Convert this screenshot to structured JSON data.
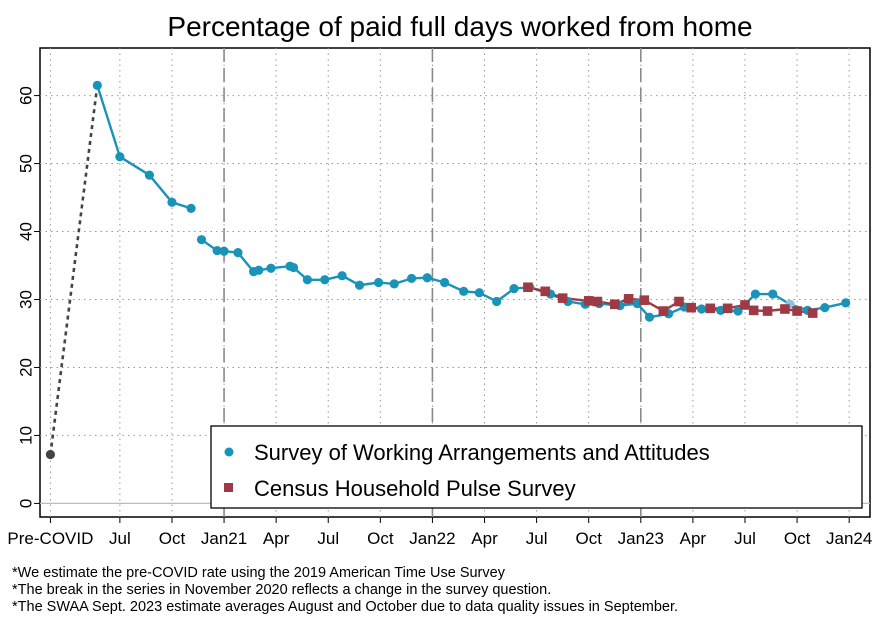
{
  "chart_data": {
    "type": "line",
    "title": "Percentage of paid full days worked from home",
    "xlabel": "",
    "ylabel": "",
    "ylim": [
      -2,
      67
    ],
    "yticks": [
      0,
      10,
      20,
      30,
      40,
      50,
      60
    ],
    "x_ticks": [
      {
        "label": "Pre-COVID",
        "x": 0
      },
      {
        "label": "Jul",
        "x": 4
      },
      {
        "label": "Oct",
        "x": 7
      },
      {
        "label": "Jan21",
        "x": 10
      },
      {
        "label": "Apr",
        "x": 13
      },
      {
        "label": "Jul",
        "x": 16
      },
      {
        "label": "Oct",
        "x": 19
      },
      {
        "label": "Jan22",
        "x": 22
      },
      {
        "label": "Apr",
        "x": 25
      },
      {
        "label": "Jul",
        "x": 28
      },
      {
        "label": "Oct",
        "x": 31
      },
      {
        "label": "Jan23",
        "x": 34
      },
      {
        "label": "Apr",
        "x": 37
      },
      {
        "label": "Jul",
        "x": 40
      },
      {
        "label": "Oct",
        "x": 43
      },
      {
        "label": "Jan24",
        "x": 46
      }
    ],
    "xlim": [
      -0.6,
      47.2
    ],
    "year_breaks": [
      10,
      22,
      34
    ],
    "grid": true,
    "legend_position": "bottom-right",
    "precovid": {
      "x": 0,
      "y": 7.2
    },
    "series": [
      {
        "name": "Survey of Working Arrangements and Attitudes",
        "marker": "circle",
        "color": "#1a93b8",
        "points": [
          [
            2.7,
            61.5
          ],
          [
            4.0,
            51.0
          ],
          [
            5.7,
            48.3
          ],
          [
            7.0,
            44.3
          ],
          [
            8.1,
            43.4
          ],
          [
            8.7,
            38.8
          ],
          [
            9.6,
            37.2
          ],
          [
            10.0,
            37.1
          ],
          [
            10.8,
            36.9
          ],
          [
            11.7,
            34.1
          ],
          [
            12.0,
            34.3
          ],
          [
            12.7,
            34.6
          ],
          [
            13.8,
            34.9
          ],
          [
            14.0,
            34.7
          ],
          [
            14.8,
            32.9
          ],
          [
            15.8,
            32.9
          ],
          [
            16.8,
            33.5
          ],
          [
            17.8,
            32.1
          ],
          [
            18.9,
            32.5
          ],
          [
            19.8,
            32.3
          ],
          [
            20.8,
            33.1
          ],
          [
            21.7,
            33.2
          ],
          [
            22.7,
            32.5
          ],
          [
            23.8,
            31.2
          ],
          [
            24.7,
            31.0
          ],
          [
            25.7,
            29.7
          ],
          [
            26.7,
            31.6
          ],
          [
            27.6,
            31.8
          ],
          [
            28.8,
            30.8
          ],
          [
            29.8,
            29.7
          ],
          [
            30.8,
            29.3
          ],
          [
            31.6,
            29.4
          ],
          [
            32.8,
            29.1
          ],
          [
            33.8,
            29.4
          ],
          [
            34.5,
            27.4
          ],
          [
            35.6,
            27.9
          ],
          [
            36.5,
            28.9
          ],
          [
            37.5,
            28.6
          ],
          [
            38.6,
            28.4
          ],
          [
            39.6,
            28.3
          ],
          [
            40.6,
            30.8
          ],
          [
            41.6,
            30.8
          ],
          [
            43.6,
            28.4
          ],
          [
            44.6,
            28.8
          ],
          [
            45.8,
            29.5
          ]
        ],
        "break_after_index": 4,
        "averaged_point": {
          "x": 42.6,
          "y": 29.3,
          "color": "#8fc4e3"
        }
      },
      {
        "name": "Census Household Pulse Survey",
        "marker": "square",
        "color": "#9e3a46",
        "points": [
          [
            27.5,
            31.8
          ],
          [
            28.5,
            31.2
          ],
          [
            29.5,
            30.2
          ],
          [
            31.0,
            29.8
          ],
          [
            31.5,
            29.7
          ],
          [
            32.5,
            29.3
          ],
          [
            33.3,
            30.1
          ],
          [
            34.2,
            29.9
          ],
          [
            35.3,
            28.3
          ],
          [
            36.2,
            29.7
          ],
          [
            36.9,
            28.8
          ],
          [
            38.0,
            28.7
          ],
          [
            39.0,
            28.7
          ],
          [
            40.0,
            29.2
          ],
          [
            40.5,
            28.4
          ],
          [
            41.3,
            28.3
          ],
          [
            42.3,
            28.6
          ],
          [
            43.0,
            28.3
          ],
          [
            43.9,
            28.0
          ]
        ]
      }
    ],
    "precovid_color": "#444444"
  },
  "footnotes": [
    "*We estimate the pre-COVID rate using the 2019 American Time Use Survey",
    "*The break in the series in November 2020 reflects a change in the survey question.",
    "*The SWAA Sept. 2023 estimate averages August and October due to data quality issues in September."
  ]
}
